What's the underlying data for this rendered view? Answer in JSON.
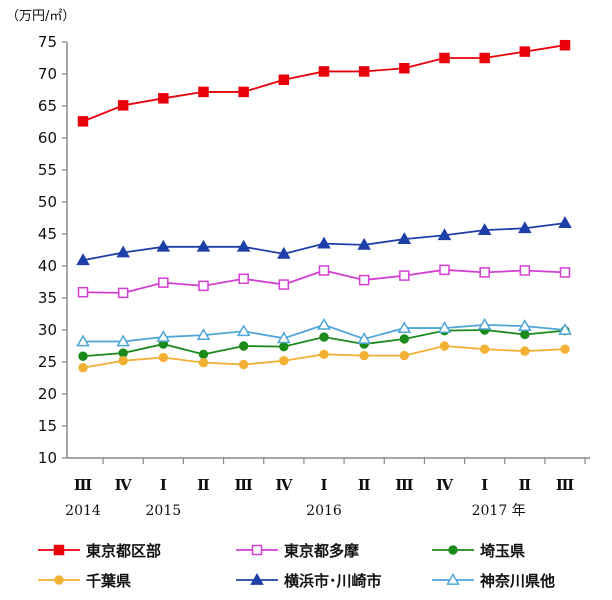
{
  "chart_data": {
    "type": "line",
    "unit_label": "（万円/㎡）",
    "ylim": [
      10,
      75
    ],
    "yticks": [
      10,
      15,
      20,
      25,
      30,
      35,
      40,
      45,
      50,
      55,
      60,
      65,
      70,
      75
    ],
    "categories": [
      "Ⅲ",
      "Ⅳ",
      "Ⅰ",
      "Ⅱ",
      "Ⅲ",
      "Ⅳ",
      "Ⅰ",
      "Ⅱ",
      "Ⅲ",
      "Ⅳ",
      "Ⅰ",
      "Ⅱ",
      "Ⅲ"
    ],
    "year_labels": [
      {
        "index": 0,
        "text": "2014"
      },
      {
        "index": 2,
        "text": "2015"
      },
      {
        "index": 6,
        "text": "2016"
      },
      {
        "index": 10,
        "text": "2017 年"
      }
    ],
    "grid": false,
    "legend_position": "bottom",
    "series": [
      {
        "name": "東京都区部",
        "color": "#e8000b",
        "marker": "filled-square",
        "values": [
          62.6,
          65.1,
          66.2,
          67.2,
          67.2,
          69.1,
          70.4,
          70.4,
          70.9,
          72.5,
          72.5,
          73.5,
          74.5
        ]
      },
      {
        "name": "東京都多摩",
        "color": "#d43fd3",
        "marker": "open-square",
        "values": [
          35.9,
          35.8,
          37.4,
          36.9,
          38.0,
          37.1,
          39.3,
          37.8,
          38.5,
          39.4,
          39.0,
          39.3,
          39.0
        ]
      },
      {
        "name": "埼玉県",
        "color": "#1a8a1a",
        "marker": "filled-circle",
        "values": [
          25.9,
          26.4,
          27.8,
          26.2,
          27.5,
          27.4,
          28.9,
          27.8,
          28.6,
          29.9,
          30.0,
          29.3,
          29.9
        ]
      },
      {
        "name": "千葉県",
        "color": "#f2b134",
        "marker": "filled-circle",
        "values": [
          24.1,
          25.2,
          25.7,
          24.9,
          24.6,
          25.2,
          26.2,
          26.0,
          26.0,
          27.5,
          27.0,
          26.7,
          27.0
        ]
      },
      {
        "name": "横浜市･川崎市",
        "color": "#1f3fa8",
        "marker": "filled-triangle",
        "values": [
          40.9,
          42.1,
          43.0,
          43.0,
          43.0,
          41.9,
          43.5,
          43.3,
          44.2,
          44.8,
          45.6,
          45.9,
          46.7
        ]
      },
      {
        "name": "神奈川県他",
        "color": "#4fa6d8",
        "marker": "open-triangle",
        "values": [
          28.2,
          28.2,
          28.9,
          29.2,
          29.8,
          28.7,
          30.8,
          28.6,
          30.3,
          30.3,
          30.8,
          30.6,
          30.0
        ]
      }
    ]
  }
}
